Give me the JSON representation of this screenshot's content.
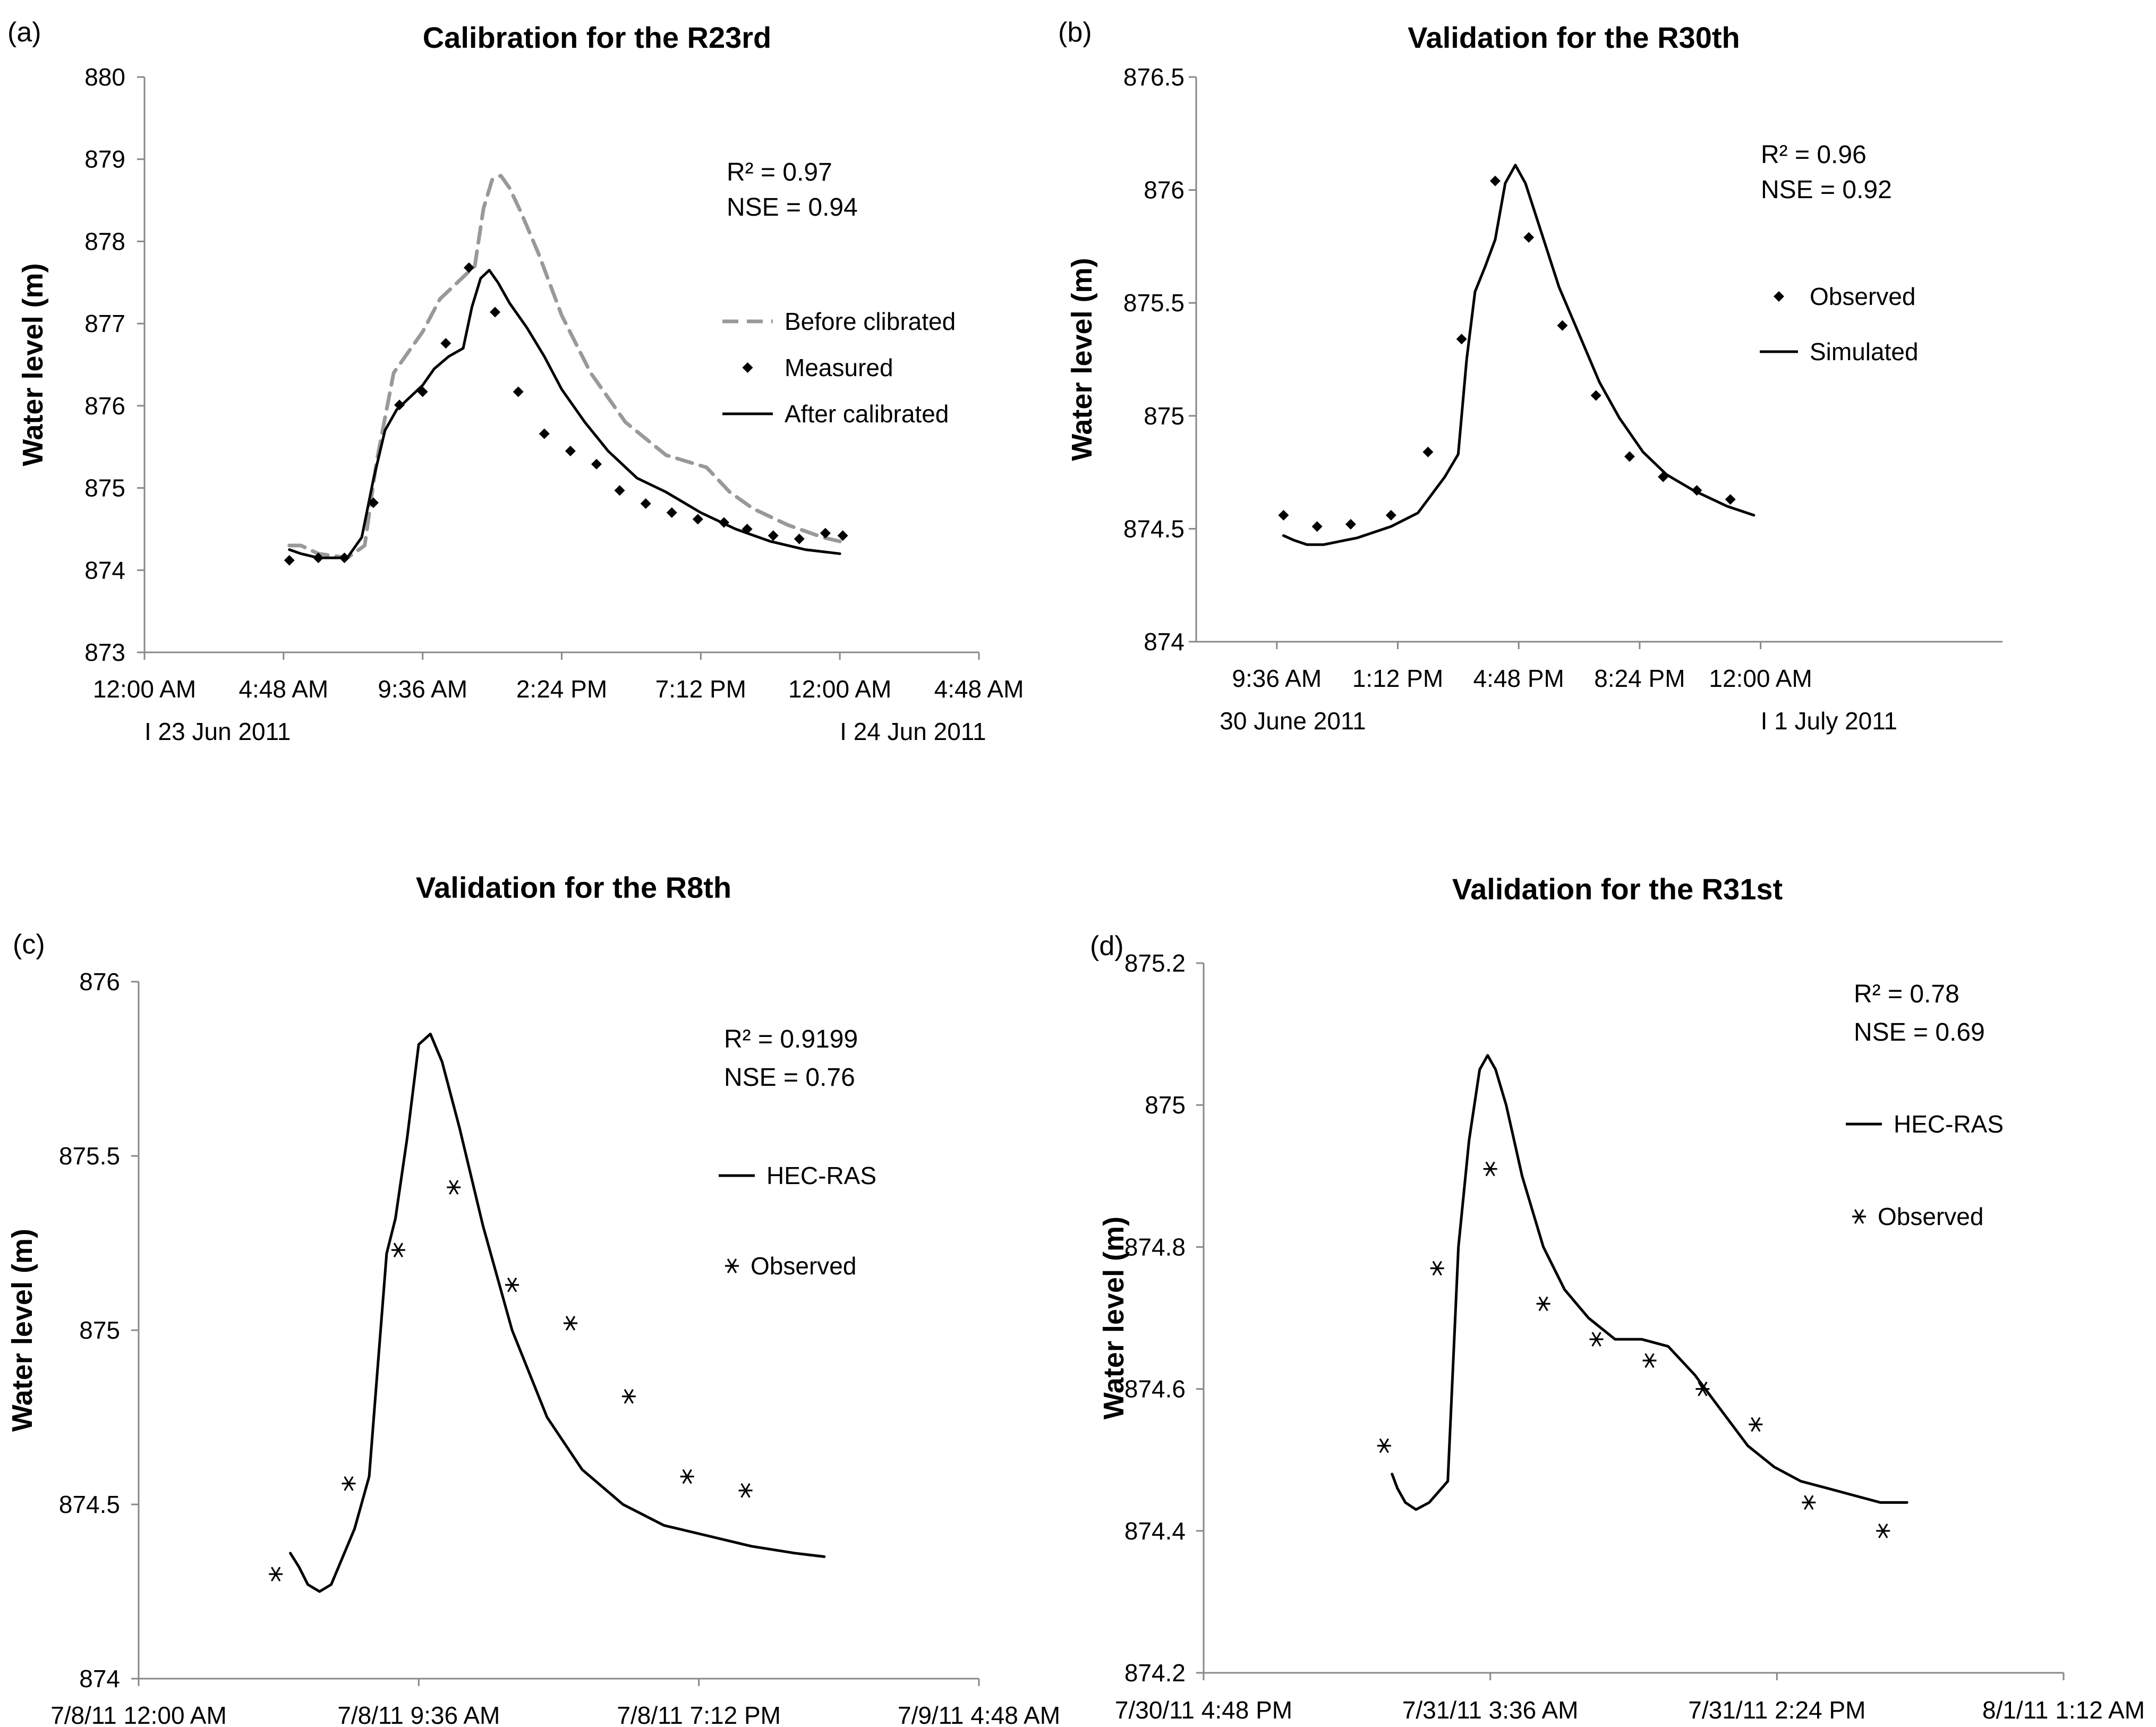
{
  "chart_data": [
    {
      "panel_label": "(a)",
      "type": "line",
      "title": "Calibration for the R23rd",
      "ylabel": "Water level (m)",
      "xlabel": "",
      "x_unit": "hours from 12:00 AM 23 Jun 2011",
      "xlim": [
        0,
        28.8
      ],
      "ylim": [
        873,
        880
      ],
      "x_ticks": [
        {
          "value": 0,
          "label": "12:00 AM"
        },
        {
          "value": 4.8,
          "label": "4:48 AM"
        },
        {
          "value": 9.6,
          "label": "9:36 AM"
        },
        {
          "value": 14.4,
          "label": "2:24 PM"
        },
        {
          "value": 19.2,
          "label": "7:12 PM"
        },
        {
          "value": 24,
          "label": "12:00 AM"
        },
        {
          "value": 28.8,
          "label": "4:48 AM"
        }
      ],
      "y_ticks": [
        {
          "value": 873,
          "label": "873"
        },
        {
          "value": 874,
          "label": "874"
        },
        {
          "value": 875,
          "label": "875"
        },
        {
          "value": 876,
          "label": "876"
        },
        {
          "value": 877,
          "label": "877"
        },
        {
          "value": 878,
          "label": "878"
        },
        {
          "value": 879,
          "label": "879"
        },
        {
          "value": 880,
          "label": "880"
        }
      ],
      "date_notes": [
        {
          "x": 0,
          "text": "I   23 Jun 2011"
        },
        {
          "x": 24,
          "text": "I   24 Jun 2011"
        }
      ],
      "stats": [
        "R² = 0.97",
        "NSE = 0.94"
      ],
      "legend": [
        {
          "label": "Before clibrated",
          "style": "dashed"
        },
        {
          "label": "Measured",
          "style": "diamond"
        },
        {
          "label": "After calibrated",
          "style": "solid"
        }
      ],
      "series": [
        {
          "name": "Before clibrated",
          "style": "dashed",
          "color": "#999999",
          "x": [
            5,
            5.4,
            6,
            7,
            7.6,
            8,
            8.6,
            9.2,
            9.6,
            10.2,
            10.8,
            11.4,
            11.7,
            12,
            12.3,
            12.6,
            13,
            13.6,
            14.4,
            15.4,
            16.6,
            18,
            19.4,
            20.2,
            21,
            22.2,
            23.4,
            24
          ],
          "y": [
            874.3,
            874.3,
            874.2,
            874.15,
            874.3,
            875.3,
            876.4,
            876.7,
            876.9,
            877.3,
            877.5,
            877.7,
            878.4,
            878.75,
            878.8,
            878.65,
            878.35,
            877.85,
            877.1,
            876.4,
            875.8,
            875.4,
            875.25,
            874.95,
            874.75,
            874.55,
            874.4,
            874.35
          ]
        },
        {
          "name": "Measured",
          "style": "diamond",
          "color": "#000000",
          "x": [
            5,
            6,
            6.9,
            7.9,
            8.8,
            9.6,
            10.4,
            11.2,
            12.1,
            12.9,
            13.8,
            14.7,
            15.6,
            16.4,
            17.3,
            18.2,
            19.1,
            20,
            20.8,
            21.7,
            22.6,
            23.5,
            24.1
          ],
          "y": [
            874.12,
            874.15,
            874.15,
            874.82,
            876.01,
            876.17,
            876.76,
            877.68,
            877.14,
            876.17,
            875.66,
            875.45,
            875.29,
            874.97,
            874.81,
            874.7,
            874.62,
            874.58,
            874.5,
            874.42,
            874.38,
            874.45,
            874.42
          ]
        },
        {
          "name": "After calibrated",
          "style": "solid",
          "color": "#000000",
          "x": [
            5,
            5.4,
            6,
            6.6,
            7,
            7.5,
            7.9,
            8.3,
            8.7,
            9,
            9.3,
            9.6,
            10,
            10.5,
            11,
            11.3,
            11.6,
            11.9,
            12.2,
            12.6,
            13.2,
            13.8,
            14.4,
            15.2,
            16,
            17,
            18,
            19.2,
            20.4,
            21.6,
            22.8,
            24
          ],
          "y": [
            874.25,
            874.2,
            874.15,
            874.15,
            874.15,
            874.4,
            875.1,
            875.7,
            875.95,
            876.05,
            876.15,
            876.25,
            876.45,
            876.6,
            876.7,
            877.2,
            877.55,
            877.65,
            877.5,
            877.25,
            876.95,
            876.6,
            876.2,
            875.8,
            875.45,
            875.12,
            874.95,
            874.7,
            874.5,
            874.35,
            874.25,
            874.2
          ]
        }
      ]
    },
    {
      "panel_label": "(b)",
      "type": "line",
      "title": "Validation for the R30th",
      "ylabel": "Water level (m)",
      "xlabel": "",
      "x_unit": "hours from 12:00 AM 30 June 2011",
      "xlim": [
        7.2,
        31.2
      ],
      "ylim": [
        874,
        876.5
      ],
      "x_ticks": [
        {
          "value": 9.6,
          "label": "9:36 AM"
        },
        {
          "value": 13.2,
          "label": "1:12 PM"
        },
        {
          "value": 16.8,
          "label": "4:48 PM"
        },
        {
          "value": 20.4,
          "label": "8:24 PM"
        },
        {
          "value": 24,
          "label": "12:00 AM"
        }
      ],
      "y_ticks": [
        {
          "value": 874,
          "label": "874"
        },
        {
          "value": 874.5,
          "label": "874.5"
        },
        {
          "value": 875,
          "label": "875"
        },
        {
          "value": 875.5,
          "label": "875.5"
        },
        {
          "value": 876,
          "label": "876"
        },
        {
          "value": 876.5,
          "label": "876.5"
        }
      ],
      "date_notes": [
        {
          "x": 7.9,
          "text": "30 June  2011"
        },
        {
          "x": 24,
          "text": "I   1 July  2011"
        }
      ],
      "stats": [
        "R² = 0.96",
        "NSE = 0.92"
      ],
      "legend": [
        {
          "label": "Observed",
          "style": "diamond"
        },
        {
          "label": "Simulated",
          "style": "solid"
        }
      ],
      "series": [
        {
          "name": "Observed",
          "style": "diamond",
          "color": "#000000",
          "x": [
            9.8,
            10.8,
            11.8,
            13,
            14.1,
            15.1,
            16.1,
            17.1,
            18.1,
            19.1,
            20.1,
            21.1,
            22.1,
            23.1
          ],
          "y": [
            874.56,
            874.51,
            874.52,
            874.56,
            874.84,
            875.34,
            876.04,
            875.79,
            875.4,
            875.09,
            874.82,
            874.73,
            874.67,
            874.63
          ]
        },
        {
          "name": "Simulated",
          "style": "solid",
          "color": "#000000",
          "x": [
            9.8,
            10.1,
            10.5,
            11,
            12,
            13,
            13.8,
            14.2,
            14.6,
            15,
            15.25,
            15.5,
            15.8,
            16.1,
            16.4,
            16.7,
            17,
            17.5,
            18,
            18.6,
            19.2,
            19.8,
            20.5,
            21.2,
            22,
            23,
            23.8
          ],
          "y": [
            874.47,
            874.45,
            874.43,
            874.43,
            874.46,
            874.51,
            874.57,
            874.65,
            874.73,
            874.83,
            875.25,
            875.55,
            875.66,
            875.78,
            876.03,
            876.11,
            876.03,
            875.8,
            875.57,
            875.36,
            875.15,
            874.99,
            874.84,
            874.74,
            874.67,
            874.6,
            874.56
          ]
        }
      ]
    },
    {
      "panel_label": "(c)",
      "type": "line",
      "title": "Validation for the R8th",
      "ylabel": "Water level (m)",
      "xlabel": "",
      "x_unit": "hours from 7/8/11 12:00 AM",
      "xlim": [
        0,
        28.8
      ],
      "ylim": [
        874,
        876
      ],
      "x_ticks": [
        {
          "value": 0,
          "label": "7/8/11 12:00 AM"
        },
        {
          "value": 9.6,
          "label": "7/8/11 9:36 AM"
        },
        {
          "value": 19.2,
          "label": "7/8/11 7:12 PM"
        },
        {
          "value": 28.8,
          "label": "7/9/11 4:48 AM"
        }
      ],
      "y_ticks": [
        {
          "value": 874,
          "label": "874"
        },
        {
          "value": 874.5,
          "label": "874.5"
        },
        {
          "value": 875,
          "label": "875"
        },
        {
          "value": 875.5,
          "label": "875.5"
        },
        {
          "value": 876,
          "label": "876"
        }
      ],
      "date_notes": [],
      "stats": [
        "R² = 0.9199",
        "NSE = 0.76"
      ],
      "legend": [
        {
          "label": "HEC-RAS",
          "style": "solid"
        },
        {
          "label": "Observed",
          "style": "asterisk"
        }
      ],
      "series": [
        {
          "name": "HEC-RAS",
          "style": "solid",
          "color": "#000000",
          "x": [
            5.2,
            5.5,
            5.8,
            6.2,
            6.6,
            7,
            7.4,
            7.9,
            8.2,
            8.5,
            8.8,
            9.2,
            9.6,
            10,
            10.4,
            11,
            11.8,
            12.8,
            14,
            15.2,
            16.6,
            18,
            19.5,
            21,
            22.5,
            23.5
          ],
          "y": [
            874.36,
            874.32,
            874.27,
            874.25,
            874.27,
            874.35,
            874.43,
            874.58,
            874.9,
            875.22,
            875.32,
            875.55,
            875.82,
            875.85,
            875.77,
            875.58,
            875.3,
            875.0,
            874.75,
            874.6,
            874.5,
            874.44,
            874.41,
            874.38,
            874.36,
            874.35
          ]
        },
        {
          "name": "Observed",
          "style": "asterisk",
          "color": "#000000",
          "x": [
            4.7,
            7.2,
            8.9,
            10.8,
            12.8,
            14.8,
            16.8,
            18.8,
            20.8
          ],
          "y": [
            874.3,
            874.56,
            875.23,
            875.41,
            875.13,
            875.02,
            874.81,
            874.58,
            874.54
          ]
        }
      ]
    },
    {
      "panel_label": "(d)",
      "type": "line",
      "title": "Validation for the R31st",
      "ylabel": "Water level (m)",
      "xlabel": "",
      "x_unit": "hours from 7/30/11 4:48 PM",
      "xlim": [
        0,
        32.4
      ],
      "ylim": [
        874.2,
        875.2
      ],
      "x_ticks": [
        {
          "value": 0,
          "label": "7/30/11 4:48 PM"
        },
        {
          "value": 10.8,
          "label": "7/31/11 3:36 AM"
        },
        {
          "value": 21.6,
          "label": "7/31/11 2:24 PM"
        },
        {
          "value": 32.4,
          "label": "8/1/11 1:12 AM"
        }
      ],
      "y_ticks": [
        {
          "value": 874.2,
          "label": "874.2"
        },
        {
          "value": 874.4,
          "label": "874.4"
        },
        {
          "value": 874.6,
          "label": "874.6"
        },
        {
          "value": 874.8,
          "label": "874.8"
        },
        {
          "value": 875,
          "label": "875"
        },
        {
          "value": 875.2,
          "label": "875.2"
        }
      ],
      "date_notes": [],
      "stats": [
        "R² = 0.78",
        "NSE = 0.69"
      ],
      "legend": [
        {
          "label": "HEC-RAS",
          "style": "solid"
        },
        {
          "label": "Observed",
          "style": "asterisk"
        }
      ],
      "series": [
        {
          "name": "HEC-RAS",
          "style": "solid",
          "color": "#000000",
          "x": [
            7.1,
            7.3,
            7.6,
            8,
            8.5,
            9.2,
            9.6,
            10,
            10.4,
            10.7,
            11,
            11.4,
            12,
            12.8,
            13.6,
            14.5,
            15.5,
            16.5,
            17.5,
            18.5,
            19.5,
            20.5,
            21.5,
            22.5,
            23.5,
            24.5,
            25.5,
            26.5
          ],
          "y": [
            874.48,
            874.46,
            874.44,
            874.43,
            874.44,
            874.47,
            874.8,
            874.95,
            875.05,
            875.07,
            875.05,
            875.0,
            874.9,
            874.8,
            874.74,
            874.7,
            874.67,
            874.67,
            874.66,
            874.62,
            874.57,
            874.52,
            874.49,
            874.47,
            874.46,
            874.45,
            874.44,
            874.44
          ]
        },
        {
          "name": "Observed",
          "style": "asterisk",
          "color": "#000000",
          "x": [
            6.8,
            8.8,
            10.8,
            12.8,
            14.8,
            16.8,
            18.8,
            20.8,
            22.8,
            25.6
          ],
          "y": [
            874.52,
            874.77,
            874.91,
            874.72,
            874.67,
            874.64,
            874.6,
            874.55,
            874.44,
            874.4
          ]
        }
      ]
    }
  ]
}
